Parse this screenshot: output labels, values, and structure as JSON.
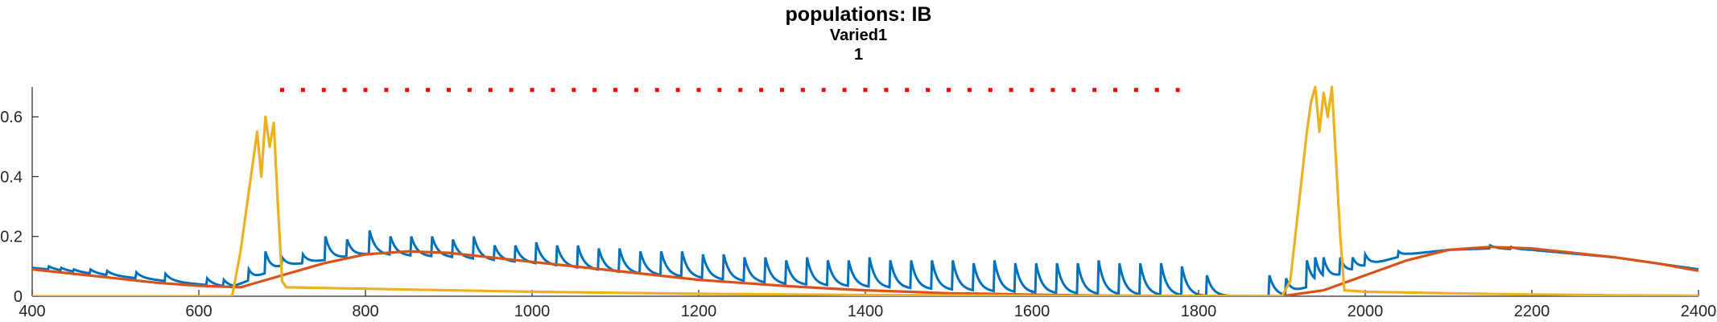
{
  "chart_data": {
    "type": "line",
    "title": "populations: IB",
    "subtitle": "Varied1",
    "subtitle2": "1",
    "xlabel": "",
    "ylabel": "",
    "xlim": [
      400,
      2400
    ],
    "ylim": [
      0,
      0.7
    ],
    "grid": false,
    "xticks": [
      400,
      600,
      800,
      1000,
      1200,
      1400,
      1600,
      1800,
      2000,
      2200,
      2400
    ],
    "xtick_labels": [
      "400",
      "600",
      "800",
      "1000",
      "1200",
      "1400",
      "1600",
      "1800",
      "2000",
      "2200",
      "2400"
    ],
    "yticks": [
      0,
      0.2,
      0.4,
      0.6
    ],
    "ytick_labels": [
      "0",
      "0.2",
      "0.4",
      "0.6"
    ],
    "colors": {
      "blue": "#0072BD",
      "orange": "#D95319",
      "yellow": "#EDB120",
      "marker": "#FF0000"
    },
    "markers": {
      "y": 0.69,
      "x": [
        700,
        725,
        750,
        775,
        800,
        825,
        850,
        875,
        900,
        925,
        950,
        975,
        1000,
        1025,
        1050,
        1075,
        1100,
        1125,
        1150,
        1175,
        1200,
        1225,
        1250,
        1275,
        1300,
        1325,
        1350,
        1375,
        1400,
        1425,
        1450,
        1475,
        1500,
        1525,
        1550,
        1575,
        1600,
        1625,
        1650,
        1675,
        1700,
        1725,
        1750,
        1775
      ]
    },
    "series": [
      {
        "color": "#0072BD",
        "baseline": [
          [
            400,
            0.095
          ],
          [
            600,
            0.04
          ],
          [
            640,
            0.03
          ],
          [
            700,
            0.1
          ],
          [
            800,
            0.14
          ],
          [
            900,
            0.13
          ],
          [
            1000,
            0.11
          ],
          [
            1100,
            0.08
          ],
          [
            1200,
            0.06
          ],
          [
            1300,
            0.04
          ],
          [
            1400,
            0.03
          ],
          [
            1500,
            0.02
          ],
          [
            1600,
            0.01
          ],
          [
            1700,
            0.005
          ],
          [
            1800,
            0.0
          ],
          [
            1900,
            0.0
          ],
          [
            1950,
            0.05
          ],
          [
            2000,
            0.1
          ],
          [
            2050,
            0.14
          ],
          [
            2100,
            0.155
          ],
          [
            2150,
            0.16
          ],
          [
            2200,
            0.155
          ],
          [
            2300,
            0.13
          ],
          [
            2400,
            0.09
          ]
        ],
        "spikes": [
          [
            420,
            0.1
          ],
          [
            435,
            0.095
          ],
          [
            450,
            0.09
          ],
          [
            470,
            0.09
          ],
          [
            490,
            0.085
          ],
          [
            525,
            0.08
          ],
          [
            560,
            0.075
          ],
          [
            610,
            0.06
          ],
          [
            630,
            0.055
          ],
          [
            660,
            0.09
          ],
          [
            680,
            0.15
          ],
          [
            700,
            0.13
          ],
          [
            725,
            0.14
          ],
          [
            752,
            0.2
          ],
          [
            778,
            0.19
          ],
          [
            805,
            0.22
          ],
          [
            830,
            0.2
          ],
          [
            855,
            0.2
          ],
          [
            880,
            0.2
          ],
          [
            905,
            0.19
          ],
          [
            930,
            0.2
          ],
          [
            955,
            0.17
          ],
          [
            980,
            0.17
          ],
          [
            1005,
            0.18
          ],
          [
            1030,
            0.17
          ],
          [
            1055,
            0.17
          ],
          [
            1080,
            0.16
          ],
          [
            1105,
            0.16
          ],
          [
            1130,
            0.15
          ],
          [
            1155,
            0.15
          ],
          [
            1180,
            0.15
          ],
          [
            1205,
            0.14
          ],
          [
            1230,
            0.14
          ],
          [
            1255,
            0.13
          ],
          [
            1280,
            0.13
          ],
          [
            1305,
            0.12
          ],
          [
            1330,
            0.13
          ],
          [
            1355,
            0.12
          ],
          [
            1380,
            0.12
          ],
          [
            1405,
            0.13
          ],
          [
            1430,
            0.12
          ],
          [
            1455,
            0.12
          ],
          [
            1480,
            0.12
          ],
          [
            1505,
            0.12
          ],
          [
            1530,
            0.11
          ],
          [
            1555,
            0.12
          ],
          [
            1580,
            0.11
          ],
          [
            1605,
            0.11
          ],
          [
            1630,
            0.11
          ],
          [
            1655,
            0.11
          ],
          [
            1680,
            0.12
          ],
          [
            1705,
            0.11
          ],
          [
            1730,
            0.11
          ],
          [
            1755,
            0.11
          ],
          [
            1780,
            0.1
          ],
          [
            1810,
            0.07
          ],
          [
            1885,
            0.07
          ],
          [
            1905,
            0.06
          ],
          [
            1930,
            0.12
          ],
          [
            1940,
            0.13
          ],
          [
            1950,
            0.13
          ],
          [
            1970,
            0.13
          ],
          [
            1985,
            0.13
          ],
          [
            2000,
            0.14
          ],
          [
            2040,
            0.15
          ],
          [
            2150,
            0.17
          ],
          [
            2175,
            0.165
          ]
        ]
      },
      {
        "color": "#D95319",
        "points": [
          [
            400,
            0.09
          ],
          [
            450,
            0.075
          ],
          [
            500,
            0.06
          ],
          [
            550,
            0.045
          ],
          [
            600,
            0.035
          ],
          [
            650,
            0.03
          ],
          [
            700,
            0.07
          ],
          [
            750,
            0.11
          ],
          [
            800,
            0.14
          ],
          [
            850,
            0.15
          ],
          [
            900,
            0.145
          ],
          [
            950,
            0.13
          ],
          [
            1000,
            0.115
          ],
          [
            1050,
            0.1
          ],
          [
            1100,
            0.085
          ],
          [
            1150,
            0.07
          ],
          [
            1200,
            0.055
          ],
          [
            1250,
            0.045
          ],
          [
            1300,
            0.035
          ],
          [
            1350,
            0.027
          ],
          [
            1400,
            0.02
          ],
          [
            1450,
            0.015
          ],
          [
            1500,
            0.01
          ],
          [
            1550,
            0.008
          ],
          [
            1600,
            0.005
          ],
          [
            1700,
            0.002
          ],
          [
            1800,
            0.001
          ],
          [
            1900,
            0.0
          ],
          [
            1950,
            0.02
          ],
          [
            2000,
            0.07
          ],
          [
            2050,
            0.12
          ],
          [
            2100,
            0.155
          ],
          [
            2150,
            0.165
          ],
          [
            2200,
            0.16
          ],
          [
            2250,
            0.145
          ],
          [
            2300,
            0.13
          ],
          [
            2350,
            0.11
          ],
          [
            2400,
            0.085
          ]
        ]
      },
      {
        "color": "#EDB120",
        "points": [
          [
            400,
            0.0
          ],
          [
            600,
            0.0
          ],
          [
            640,
            0.0
          ],
          [
            650,
            0.15
          ],
          [
            660,
            0.35
          ],
          [
            665,
            0.45
          ],
          [
            670,
            0.55
          ],
          [
            675,
            0.4
          ],
          [
            680,
            0.6
          ],
          [
            685,
            0.5
          ],
          [
            690,
            0.58
          ],
          [
            695,
            0.3
          ],
          [
            700,
            0.05
          ],
          [
            705,
            0.03
          ],
          [
            800,
            0.025
          ],
          [
            1000,
            0.015
          ],
          [
            1200,
            0.008
          ],
          [
            1400,
            0.004
          ],
          [
            1600,
            0.002
          ],
          [
            1800,
            0.001
          ],
          [
            1900,
            0.0
          ],
          [
            1910,
            0.05
          ],
          [
            1920,
            0.3
          ],
          [
            1930,
            0.55
          ],
          [
            1935,
            0.65
          ],
          [
            1940,
            0.7
          ],
          [
            1945,
            0.55
          ],
          [
            1950,
            0.68
          ],
          [
            1955,
            0.6
          ],
          [
            1960,
            0.7
          ],
          [
            1965,
            0.45
          ],
          [
            1970,
            0.2
          ],
          [
            1975,
            0.02
          ],
          [
            2000,
            0.015
          ],
          [
            2100,
            0.01
          ],
          [
            2200,
            0.006
          ],
          [
            2300,
            0.003
          ],
          [
            2400,
            0.002
          ]
        ]
      }
    ]
  }
}
